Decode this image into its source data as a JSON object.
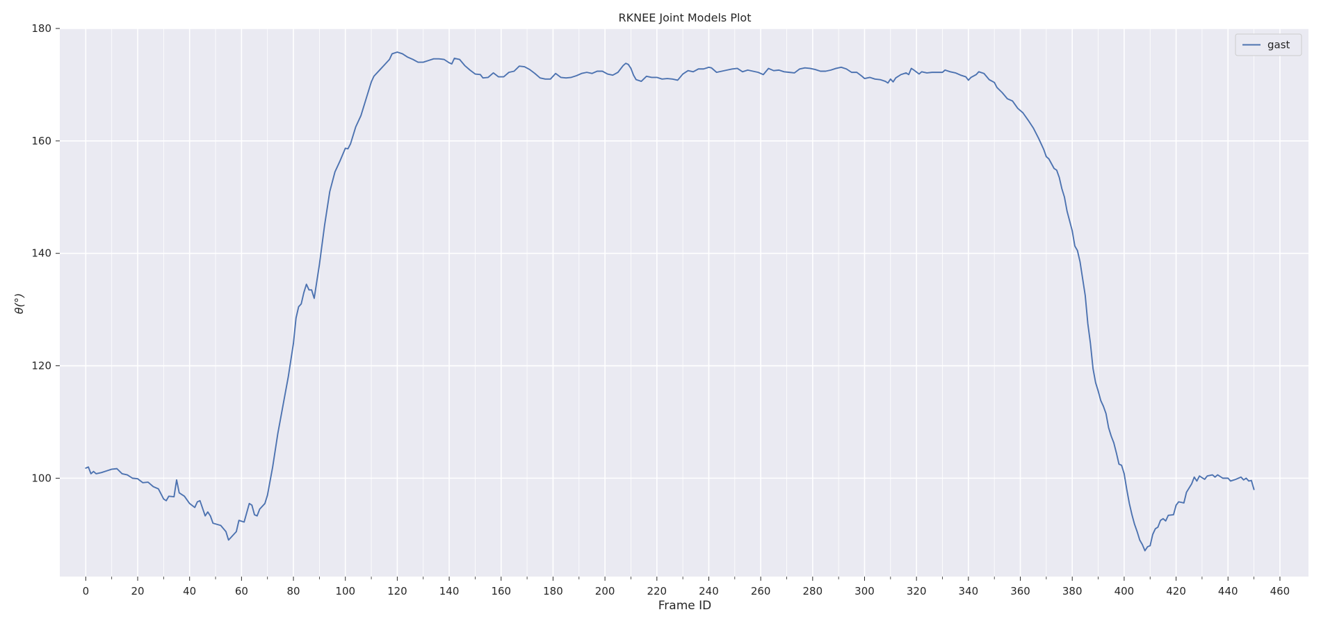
{
  "colors": {
    "plot_background": "#eaeaf2",
    "grid": "#ffffff",
    "series_gast": "#4c72b0",
    "text": "#262626"
  },
  "chart_data": {
    "type": "line",
    "title": "RKNEE Joint Models Plot",
    "xlabel": "Frame ID",
    "ylabel": "θ(°)",
    "xlim": [
      -10,
      471
    ],
    "ylim": [
      82.5,
      180
    ],
    "x_ticks": [
      0,
      20,
      40,
      60,
      80,
      100,
      120,
      140,
      160,
      180,
      200,
      220,
      240,
      260,
      280,
      300,
      320,
      340,
      360,
      380,
      400,
      420,
      440,
      460
    ],
    "x_minor_ticks": [
      10,
      30,
      50,
      70,
      90,
      110,
      130,
      150,
      170,
      190,
      210,
      230,
      250,
      270,
      290,
      310,
      330,
      350,
      370,
      390,
      410,
      430,
      450
    ],
    "y_ticks": [
      100,
      120,
      140,
      160,
      180
    ],
    "grid": true,
    "legend": {
      "position": "top-right"
    },
    "series": [
      {
        "name": "gast",
        "color": "#4c72b0",
        "points": [
          [
            0,
            101.8
          ],
          [
            1,
            102.0
          ],
          [
            2,
            100.8
          ],
          [
            3,
            101.2
          ],
          [
            4,
            100.8
          ],
          [
            6,
            101.0
          ],
          [
            8,
            101.3
          ],
          [
            10,
            101.6
          ],
          [
            12,
            101.7
          ],
          [
            14,
            100.8
          ],
          [
            16,
            100.6
          ],
          [
            18,
            100.0
          ],
          [
            20,
            99.9
          ],
          [
            22,
            99.2
          ],
          [
            24,
            99.3
          ],
          [
            26,
            98.5
          ],
          [
            28,
            98.1
          ],
          [
            30,
            96.3
          ],
          [
            31,
            96.0
          ],
          [
            32,
            96.8
          ],
          [
            34,
            96.7
          ],
          [
            35,
            99.7
          ],
          [
            36,
            97.4
          ],
          [
            38,
            96.8
          ],
          [
            40,
            95.5
          ],
          [
            42,
            94.8
          ],
          [
            43,
            95.8
          ],
          [
            44,
            96.0
          ],
          [
            46,
            93.3
          ],
          [
            47,
            94.0
          ],
          [
            48,
            93.3
          ],
          [
            49,
            92.0
          ],
          [
            52,
            91.6
          ],
          [
            54,
            90.5
          ],
          [
            55,
            89.0
          ],
          [
            56,
            89.5
          ],
          [
            58,
            90.5
          ],
          [
            59,
            92.5
          ],
          [
            61,
            92.2
          ],
          [
            63,
            95.5
          ],
          [
            64,
            95.2
          ],
          [
            65,
            93.5
          ],
          [
            66,
            93.3
          ],
          [
            67,
            94.5
          ],
          [
            69,
            95.5
          ],
          [
            70,
            97.0
          ],
          [
            72,
            102.0
          ],
          [
            74,
            108.0
          ],
          [
            76,
            113.0
          ],
          [
            78,
            118.0
          ],
          [
            80,
            124.0
          ],
          [
            81,
            128.5
          ],
          [
            82,
            130.5
          ],
          [
            83,
            131.0
          ],
          [
            84,
            133.0
          ],
          [
            85,
            134.5
          ],
          [
            86,
            133.5
          ],
          [
            87,
            133.5
          ],
          [
            88,
            132.0
          ],
          [
            89,
            135.0
          ],
          [
            90,
            138.0
          ],
          [
            92,
            145.0
          ],
          [
            94,
            151.0
          ],
          [
            96,
            154.5
          ],
          [
            98,
            156.5
          ],
          [
            100,
            158.7
          ],
          [
            101,
            158.6
          ],
          [
            102,
            159.5
          ],
          [
            104,
            162.5
          ],
          [
            106,
            164.5
          ],
          [
            107,
            166.0
          ],
          [
            108,
            167.5
          ],
          [
            110,
            170.5
          ],
          [
            111,
            171.5
          ],
          [
            113,
            172.5
          ],
          [
            115,
            173.5
          ],
          [
            117,
            174.5
          ],
          [
            118,
            175.5
          ],
          [
            120,
            175.8
          ],
          [
            122,
            175.5
          ],
          [
            124,
            174.9
          ],
          [
            126,
            174.5
          ],
          [
            128,
            174.0
          ],
          [
            130,
            174.0
          ],
          [
            132,
            174.3
          ],
          [
            134,
            174.6
          ],
          [
            136,
            174.6
          ],
          [
            138,
            174.5
          ],
          [
            140,
            173.9
          ],
          [
            141,
            173.7
          ],
          [
            142,
            174.7
          ],
          [
            144,
            174.5
          ],
          [
            146,
            173.4
          ],
          [
            148,
            172.6
          ],
          [
            150,
            171.9
          ],
          [
            152,
            171.8
          ],
          [
            153,
            171.2
          ],
          [
            155,
            171.3
          ],
          [
            157,
            172.1
          ],
          [
            159,
            171.4
          ],
          [
            161,
            171.4
          ],
          [
            163,
            172.2
          ],
          [
            165,
            172.4
          ],
          [
            167,
            173.3
          ],
          [
            169,
            173.2
          ],
          [
            171,
            172.7
          ],
          [
            173,
            172.0
          ],
          [
            175,
            171.2
          ],
          [
            177,
            171.0
          ],
          [
            179,
            171.0
          ],
          [
            181,
            172.0
          ],
          [
            183,
            171.3
          ],
          [
            185,
            171.2
          ],
          [
            187,
            171.3
          ],
          [
            189,
            171.6
          ],
          [
            191,
            172.0
          ],
          [
            193,
            172.2
          ],
          [
            195,
            172.0
          ],
          [
            197,
            172.4
          ],
          [
            199,
            172.4
          ],
          [
            201,
            171.9
          ],
          [
            203,
            171.7
          ],
          [
            205,
            172.2
          ],
          [
            207,
            173.4
          ],
          [
            208,
            173.8
          ],
          [
            209,
            173.6
          ],
          [
            210,
            172.9
          ],
          [
            211,
            171.7
          ],
          [
            212,
            170.9
          ],
          [
            214,
            170.6
          ],
          [
            216,
            171.5
          ],
          [
            218,
            171.3
          ],
          [
            220,
            171.3
          ],
          [
            222,
            171.0
          ],
          [
            224,
            171.1
          ],
          [
            226,
            171.0
          ],
          [
            228,
            170.8
          ],
          [
            230,
            171.9
          ],
          [
            232,
            172.5
          ],
          [
            234,
            172.3
          ],
          [
            236,
            172.8
          ],
          [
            238,
            172.8
          ],
          [
            240,
            173.1
          ],
          [
            241,
            173.0
          ],
          [
            243,
            172.2
          ],
          [
            245,
            172.4
          ],
          [
            247,
            172.6
          ],
          [
            249,
            172.8
          ],
          [
            251,
            172.9
          ],
          [
            253,
            172.3
          ],
          [
            255,
            172.6
          ],
          [
            257,
            172.4
          ],
          [
            259,
            172.2
          ],
          [
            261,
            171.8
          ],
          [
            263,
            172.9
          ],
          [
            265,
            172.5
          ],
          [
            267,
            172.6
          ],
          [
            269,
            172.3
          ],
          [
            271,
            172.2
          ],
          [
            273,
            172.1
          ],
          [
            275,
            172.8
          ],
          [
            277,
            173.0
          ],
          [
            279,
            172.9
          ],
          [
            281,
            172.7
          ],
          [
            283,
            172.4
          ],
          [
            285,
            172.4
          ],
          [
            287,
            172.6
          ],
          [
            289,
            172.9
          ],
          [
            291,
            173.1
          ],
          [
            293,
            172.8
          ],
          [
            295,
            172.2
          ],
          [
            297,
            172.2
          ],
          [
            299,
            171.5
          ],
          [
            300,
            171.1
          ],
          [
            302,
            171.3
          ],
          [
            304,
            171.0
          ],
          [
            306,
            170.9
          ],
          [
            308,
            170.6
          ],
          [
            309,
            170.3
          ],
          [
            310,
            171.0
          ],
          [
            311,
            170.5
          ],
          [
            312,
            171.2
          ],
          [
            314,
            171.8
          ],
          [
            316,
            172.1
          ],
          [
            317,
            171.8
          ],
          [
            318,
            172.9
          ],
          [
            319,
            172.6
          ],
          [
            321,
            171.9
          ],
          [
            322,
            172.3
          ],
          [
            324,
            172.1
          ],
          [
            326,
            172.2
          ],
          [
            328,
            172.2
          ],
          [
            330,
            172.2
          ],
          [
            331,
            172.6
          ],
          [
            333,
            172.3
          ],
          [
            335,
            172.1
          ],
          [
            337,
            171.7
          ],
          [
            339,
            171.4
          ],
          [
            340,
            170.8
          ],
          [
            341,
            171.3
          ],
          [
            343,
            171.8
          ],
          [
            344,
            172.3
          ],
          [
            346,
            172.0
          ],
          [
            348,
            170.9
          ],
          [
            350,
            170.4
          ],
          [
            351,
            169.5
          ],
          [
            353,
            168.6
          ],
          [
            355,
            167.5
          ],
          [
            357,
            167.1
          ],
          [
            359,
            165.8
          ],
          [
            361,
            165.0
          ],
          [
            363,
            163.7
          ],
          [
            365,
            162.3
          ],
          [
            367,
            160.5
          ],
          [
            369,
            158.5
          ],
          [
            370,
            157.2
          ],
          [
            371,
            156.8
          ],
          [
            373,
            155.1
          ],
          [
            374,
            154.8
          ],
          [
            375,
            153.5
          ],
          [
            376,
            151.5
          ],
          [
            377,
            150.0
          ],
          [
            378,
            147.5
          ],
          [
            380,
            144.0
          ],
          [
            381,
            141.3
          ],
          [
            382,
            140.5
          ],
          [
            383,
            138.5
          ],
          [
            384,
            135.5
          ],
          [
            385,
            132.5
          ],
          [
            386,
            127.5
          ],
          [
            387,
            124.0
          ],
          [
            388,
            119.5
          ],
          [
            389,
            117.0
          ],
          [
            390,
            115.5
          ],
          [
            391,
            113.8
          ],
          [
            392,
            112.8
          ],
          [
            393,
            111.5
          ],
          [
            394,
            109.0
          ],
          [
            395,
            107.5
          ],
          [
            396,
            106.3
          ],
          [
            397,
            104.5
          ],
          [
            398,
            102.5
          ],
          [
            399,
            102.3
          ],
          [
            400,
            100.8
          ],
          [
            401,
            98.0
          ],
          [
            402,
            95.5
          ],
          [
            403,
            93.5
          ],
          [
            404,
            91.8
          ],
          [
            405,
            90.5
          ],
          [
            406,
            89.0
          ],
          [
            407,
            88.2
          ],
          [
            408,
            87.1
          ],
          [
            409,
            87.8
          ],
          [
            410,
            88.0
          ],
          [
            411,
            90.0
          ],
          [
            412,
            91.0
          ],
          [
            413,
            91.3
          ],
          [
            414,
            92.5
          ],
          [
            415,
            92.8
          ],
          [
            416,
            92.4
          ],
          [
            417,
            93.4
          ],
          [
            419,
            93.5
          ],
          [
            420,
            95.2
          ],
          [
            421,
            95.8
          ],
          [
            423,
            95.6
          ],
          [
            424,
            97.5
          ],
          [
            426,
            99.0
          ],
          [
            427,
            100.2
          ],
          [
            428,
            99.5
          ],
          [
            429,
            100.4
          ],
          [
            431,
            99.8
          ],
          [
            432,
            100.4
          ],
          [
            434,
            100.6
          ],
          [
            435,
            100.2
          ],
          [
            436,
            100.6
          ],
          [
            438,
            100.0
          ],
          [
            440,
            100.0
          ],
          [
            441,
            99.5
          ],
          [
            443,
            99.8
          ],
          [
            445,
            100.2
          ],
          [
            446,
            99.7
          ],
          [
            447,
            100.0
          ],
          [
            448,
            99.5
          ],
          [
            449,
            99.6
          ],
          [
            450,
            98.0
          ]
        ]
      }
    ]
  }
}
